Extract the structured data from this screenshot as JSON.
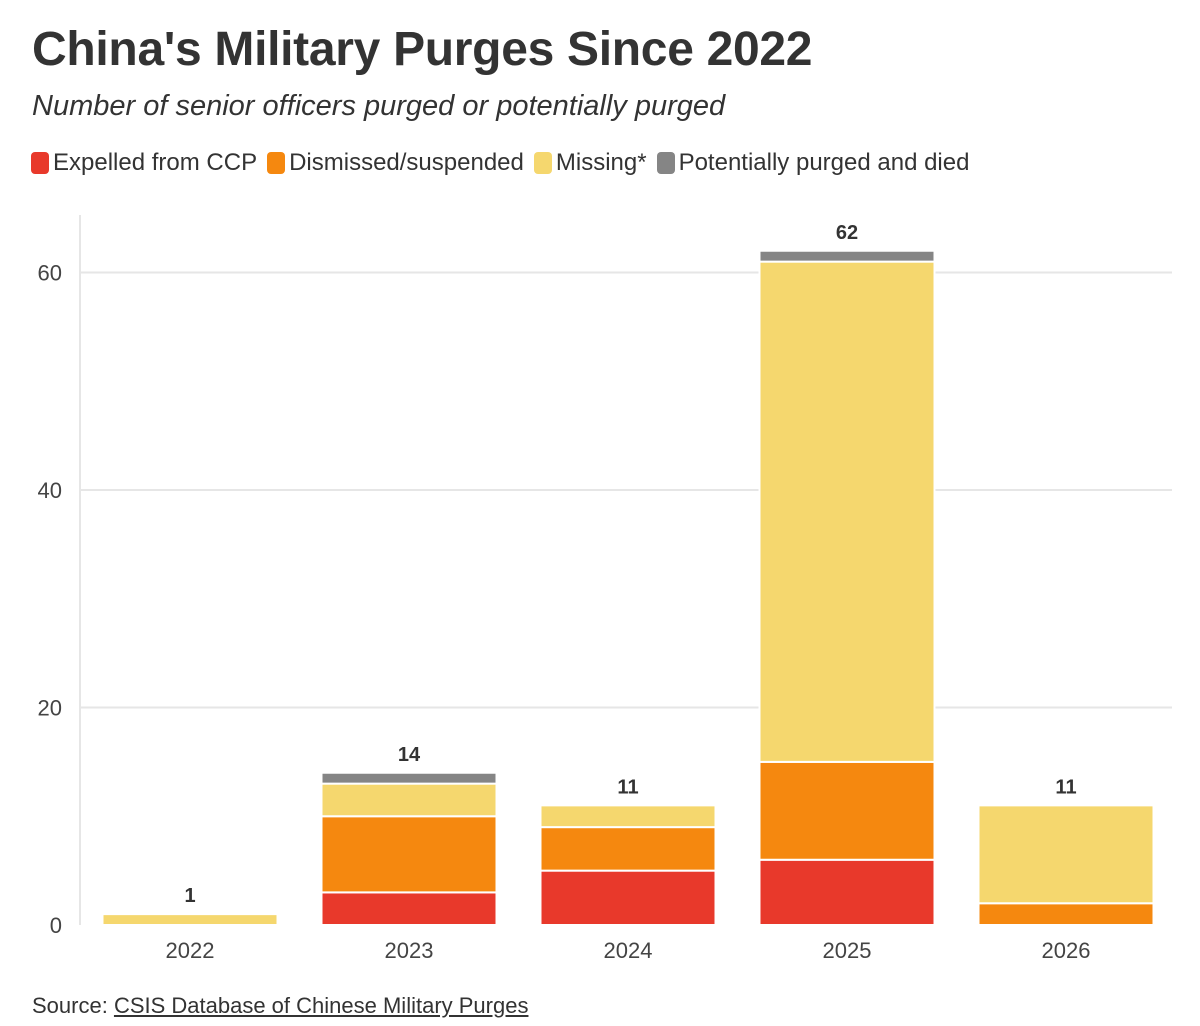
{
  "title": "China's Military Purges Since 2022",
  "subtitle": "Number of senior officers purged or potentially purged",
  "source": {
    "prefix": "Source: ",
    "link_text": "CSIS Database of Chinese Military Purges"
  },
  "colors": {
    "expelled": "#e8392b",
    "dismissed": "#f5880f",
    "missing": "#f5d76e",
    "died": "#858585",
    "grid": "#e6e6e6",
    "text": "#333333"
  },
  "chart_data": {
    "type": "bar",
    "stacked": true,
    "title": "China's Military Purges Since 2022",
    "subtitle": "Number of senior officers purged or potentially purged",
    "xlabel": "",
    "ylabel": "",
    "ylim": [
      0,
      65
    ],
    "yticks": [
      0,
      20,
      40,
      60
    ],
    "grid": true,
    "legend_position": "top-left",
    "categories": [
      "2022",
      "2023",
      "2024",
      "2025",
      "2026"
    ],
    "series": [
      {
        "key": "expelled",
        "name": "Expelled from CCP",
        "values": [
          0,
          3,
          5,
          6,
          0
        ]
      },
      {
        "key": "dismissed",
        "name": "Dismissed/suspended",
        "values": [
          0,
          7,
          4,
          9,
          2
        ]
      },
      {
        "key": "missing",
        "name": "Missing*",
        "values": [
          1,
          3,
          2,
          46,
          9
        ]
      },
      {
        "key": "died",
        "name": "Potentially purged and died",
        "values": [
          0,
          1,
          0,
          1,
          0
        ]
      }
    ],
    "totals": [
      1,
      14,
      11,
      62,
      11
    ]
  }
}
